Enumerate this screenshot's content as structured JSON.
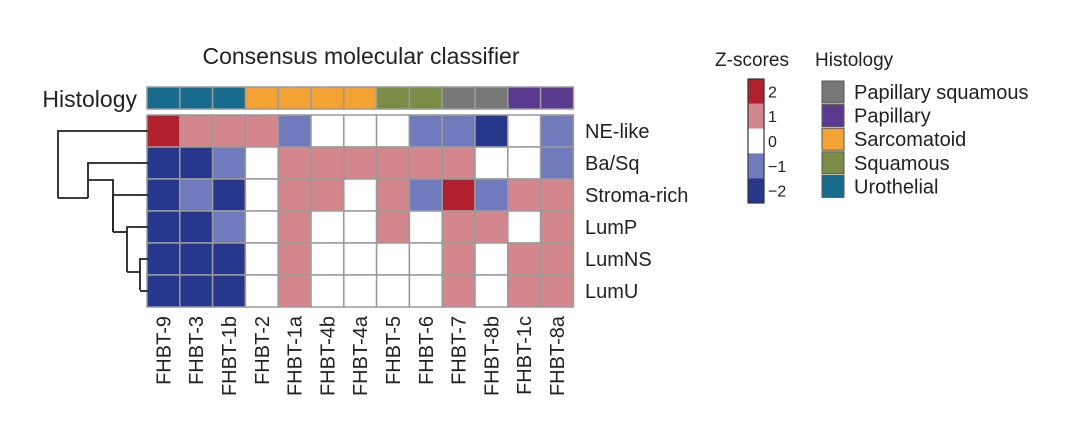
{
  "chart_data": {
    "type": "heatmap",
    "title": "Consensus molecular classifier",
    "annotation_label": "Histology",
    "columns": [
      "FHBT-9",
      "FHBT-3",
      "FHBT-1b",
      "FHBT-2",
      "FHBT-1a",
      "FHBT-4b",
      "FHBT-4a",
      "FHBT-5",
      "FHBT-6",
      "FHBT-7",
      "FHBT-8b",
      "FHBT-1c",
      "FHBT-8a"
    ],
    "histology": [
      "Urothelial",
      "Urothelial",
      "Urothelial",
      "Sarcomatoid",
      "Sarcomatoid",
      "Sarcomatoid",
      "Sarcomatoid",
      "Squamous",
      "Squamous",
      "Papillary squamous",
      "Papillary squamous",
      "Papillary",
      "Papillary"
    ],
    "rows": [
      "NE-like",
      "Ba/Sq",
      "Stroma-rich",
      "LumP",
      "LumNS",
      "LumU"
    ],
    "values": [
      [
        2,
        1,
        1,
        1,
        -1,
        0,
        0,
        0,
        -1,
        -1,
        -2,
        0,
        -1
      ],
      [
        -2,
        -2,
        -1,
        0,
        1,
        1,
        1,
        1,
        1,
        1,
        0,
        0,
        -1
      ],
      [
        -2,
        -1,
        -2,
        0,
        1,
        1,
        0,
        1,
        -1,
        2,
        -1,
        1,
        1
      ],
      [
        -2,
        -2,
        -1,
        0,
        1,
        0,
        0,
        1,
        0,
        1,
        1,
        0,
        1
      ],
      [
        -2,
        -2,
        -2,
        0,
        1,
        0,
        0,
        0,
        0,
        1,
        0,
        1,
        1
      ],
      [
        -2,
        -2,
        -2,
        0,
        1,
        0,
        0,
        0,
        0,
        1,
        0,
        1,
        1
      ]
    ],
    "colorbar": {
      "title": "Z-scores",
      "ticks": [
        "2",
        "1",
        "0",
        "−1",
        "−2"
      ],
      "levels": [
        2,
        1,
        0,
        -1,
        -2
      ],
      "colors": {
        "2": "#b3212e",
        "1": "#d4868d",
        "0": "#ffffff",
        "-1": "#6f7bbd",
        "-2": "#27388c"
      }
    },
    "histology_legend": {
      "title": "Histology",
      "entries": [
        {
          "label": "Papillary squamous",
          "color": "#787878"
        },
        {
          "label": "Papillary",
          "color": "#5a3a8e"
        },
        {
          "label": "Sarcomatoid",
          "color": "#f4a234"
        },
        {
          "label": "Squamous",
          "color": "#7a8c45"
        },
        {
          "label": "Urothelial",
          "color": "#176b8c"
        }
      ]
    }
  }
}
